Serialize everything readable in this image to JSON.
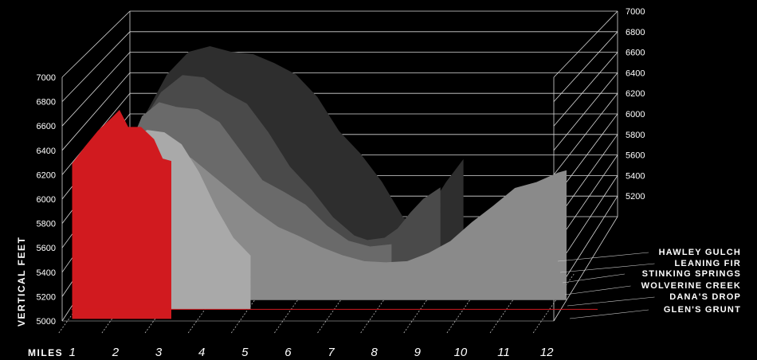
{
  "chart_data": {
    "type": "area",
    "title": "",
    "ylabel": "VERTICAL FEET",
    "xlabel": "MILES",
    "x_ticks": [
      "1",
      "2",
      "3",
      "4",
      "5",
      "6",
      "7",
      "8",
      "9",
      "10",
      "11",
      "12"
    ],
    "y_ticks_front": [
      "5000",
      "5200",
      "5400",
      "5600",
      "5800",
      "6000",
      "6200",
      "6400",
      "6600",
      "6800",
      "7000"
    ],
    "y_ticks_back": [
      "5200",
      "5400",
      "5600",
      "5800",
      "6000",
      "6200",
      "6400",
      "6600",
      "6800",
      "7000"
    ],
    "ylim": [
      5000,
      7000
    ],
    "xlim": [
      0.8,
      12.2
    ],
    "legend_position": "right",
    "grid": true,
    "series": [
      {
        "name": "HAWLEY GULCH",
        "color": "#2e2e2e",
        "x": [
          2,
          2.5,
          3,
          3.5,
          4,
          4.5,
          5,
          5.5,
          6,
          6.5,
          7,
          7.5,
          8,
          8.3,
          8.6,
          9,
          9.4
        ],
        "y": [
          6400,
          6750,
          6950,
          7000,
          6950,
          6930,
          6850,
          6750,
          6550,
          6250,
          6050,
          5800,
          5480,
          5420,
          5560,
          5800,
          6000
        ]
      },
      {
        "name": "LEANING FIR",
        "color": "#4a4a4a",
        "x": [
          2,
          2.5,
          3,
          3.5,
          4,
          4.5,
          5,
          5.5,
          6,
          6.5,
          7,
          7.3,
          7.7,
          8,
          8.3,
          8.6,
          9
        ],
        "y": [
          6350,
          6650,
          6800,
          6780,
          6650,
          6550,
          6300,
          6000,
          5800,
          5560,
          5400,
          5360,
          5380,
          5460,
          5600,
          5720,
          5820
        ]
      },
      {
        "name": "STINKING SPRINGS",
        "color": "#6a6a6a",
        "x": [
          1.8,
          2.2,
          2.6,
          3,
          3.5,
          4,
          4.5,
          5,
          5.5,
          6,
          6.5,
          7,
          7.5,
          8
        ],
        "y": [
          6150,
          6500,
          6620,
          6580,
          6560,
          6450,
          6200,
          5950,
          5850,
          5740,
          5560,
          5430,
          5380,
          5400
        ]
      },
      {
        "name": "WOLVERINE CREEK",
        "color": "#8a8a8a",
        "x": [
          1.6,
          2,
          2.5,
          3,
          3.5,
          4,
          4.5,
          5,
          5.5,
          6,
          6.5,
          7,
          7.5,
          8,
          8.5,
          9,
          9.5,
          10,
          10.5,
          11,
          11.5,
          12,
          12.2
        ],
        "y": [
          5950,
          6250,
          6350,
          6300,
          6200,
          6050,
          5900,
          5750,
          5620,
          5540,
          5450,
          5380,
          5330,
          5320,
          5330,
          5400,
          5500,
          5660,
          5800,
          5950,
          6000,
          6080,
          6100
        ]
      },
      {
        "name": "DANA'S DROP",
        "color": "#a9a9a9",
        "x": [
          1.4,
          1.8,
          2.2,
          2.6,
          3,
          3.4,
          3.8,
          4.2,
          4.6,
          5
        ],
        "y": [
          5950,
          6250,
          6420,
          6500,
          6480,
          6380,
          6150,
          5850,
          5600,
          5450
        ]
      },
      {
        "name": "GLEN'S GRUNT",
        "color": "#d11a1f",
        "x": [
          1,
          1.3,
          1.6,
          1.9,
          2.1,
          2.3,
          2.6,
          2.9,
          3.1,
          3.3
        ],
        "y": [
          6280,
          6420,
          6550,
          6650,
          6720,
          6580,
          6580,
          6480,
          6320,
          6300
        ]
      }
    ]
  }
}
